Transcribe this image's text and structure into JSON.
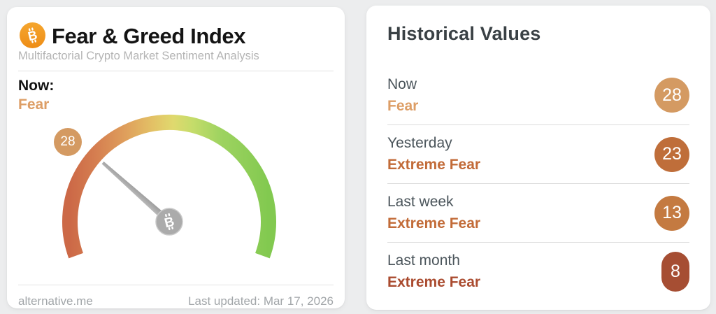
{
  "page": {
    "background": "#ecedee"
  },
  "left_card": {
    "title": "Fear & Greed Index",
    "subtitle": "Multifactorial Crypto Market Sentiment Analysis",
    "bitcoin_icon_color": "#f2981b",
    "now_label": "Now:",
    "now_classification": "Fear",
    "now_classification_color": "#dd9e66",
    "gauge": {
      "value": 28,
      "value_label": "28",
      "min": 0,
      "max": 100,
      "classification": "Fear",
      "needle_rotation_deg": -48.4,
      "badge_color": "#d49a62",
      "needle_color": "#a9a9a9",
      "hub_color": "#ababab",
      "arc_colors": [
        "#cc6947",
        "#d57e50",
        "#df9f5c",
        "#e3c266",
        "#e0d96e",
        "#c4dc6a",
        "#9ed360",
        "#82c950"
      ]
    },
    "footer": {
      "site": "alternative.me",
      "last_updated": "Last updated: Mar 17, 2026"
    }
  },
  "right_card": {
    "title": "Historical Values",
    "rows": [
      {
        "label": "Now",
        "classification": "Fear",
        "value": "28",
        "text_color": "#dd9e66",
        "badge_color": "#d49a62"
      },
      {
        "label": "Yesterday",
        "classification": "Extreme Fear",
        "value": "23",
        "text_color": "#c26b38",
        "badge_color": "#bf6e3a"
      },
      {
        "label": "Last week",
        "classification": "Extreme Fear",
        "value": "13",
        "text_color": "#c26b38",
        "badge_color": "#c47a41"
      },
      {
        "label": "Last month",
        "classification": "Extreme Fear",
        "value": "8",
        "text_color": "#aa4b2f",
        "badge_color": "#a64e33"
      }
    ]
  },
  "chart_data": {
    "type": "gauge",
    "title": "Fear & Greed Index",
    "subtitle": "Multifactorial Crypto Market Sentiment Analysis",
    "value": 28,
    "classification": "Fear",
    "range": [
      0,
      100
    ],
    "color_scale": "red-orange (0, Extreme Fear) through yellow (50) to green (100, Extreme Greed)",
    "last_updated": "Mar 17, 2026",
    "source": "alternative.me",
    "historical": [
      {
        "period": "Now",
        "value": 28,
        "classification": "Fear"
      },
      {
        "period": "Yesterday",
        "value": 23,
        "classification": "Extreme Fear"
      },
      {
        "period": "Last week",
        "value": 13,
        "classification": "Extreme Fear"
      },
      {
        "period": "Last month",
        "value": 8,
        "classification": "Extreme Fear"
      }
    ]
  }
}
